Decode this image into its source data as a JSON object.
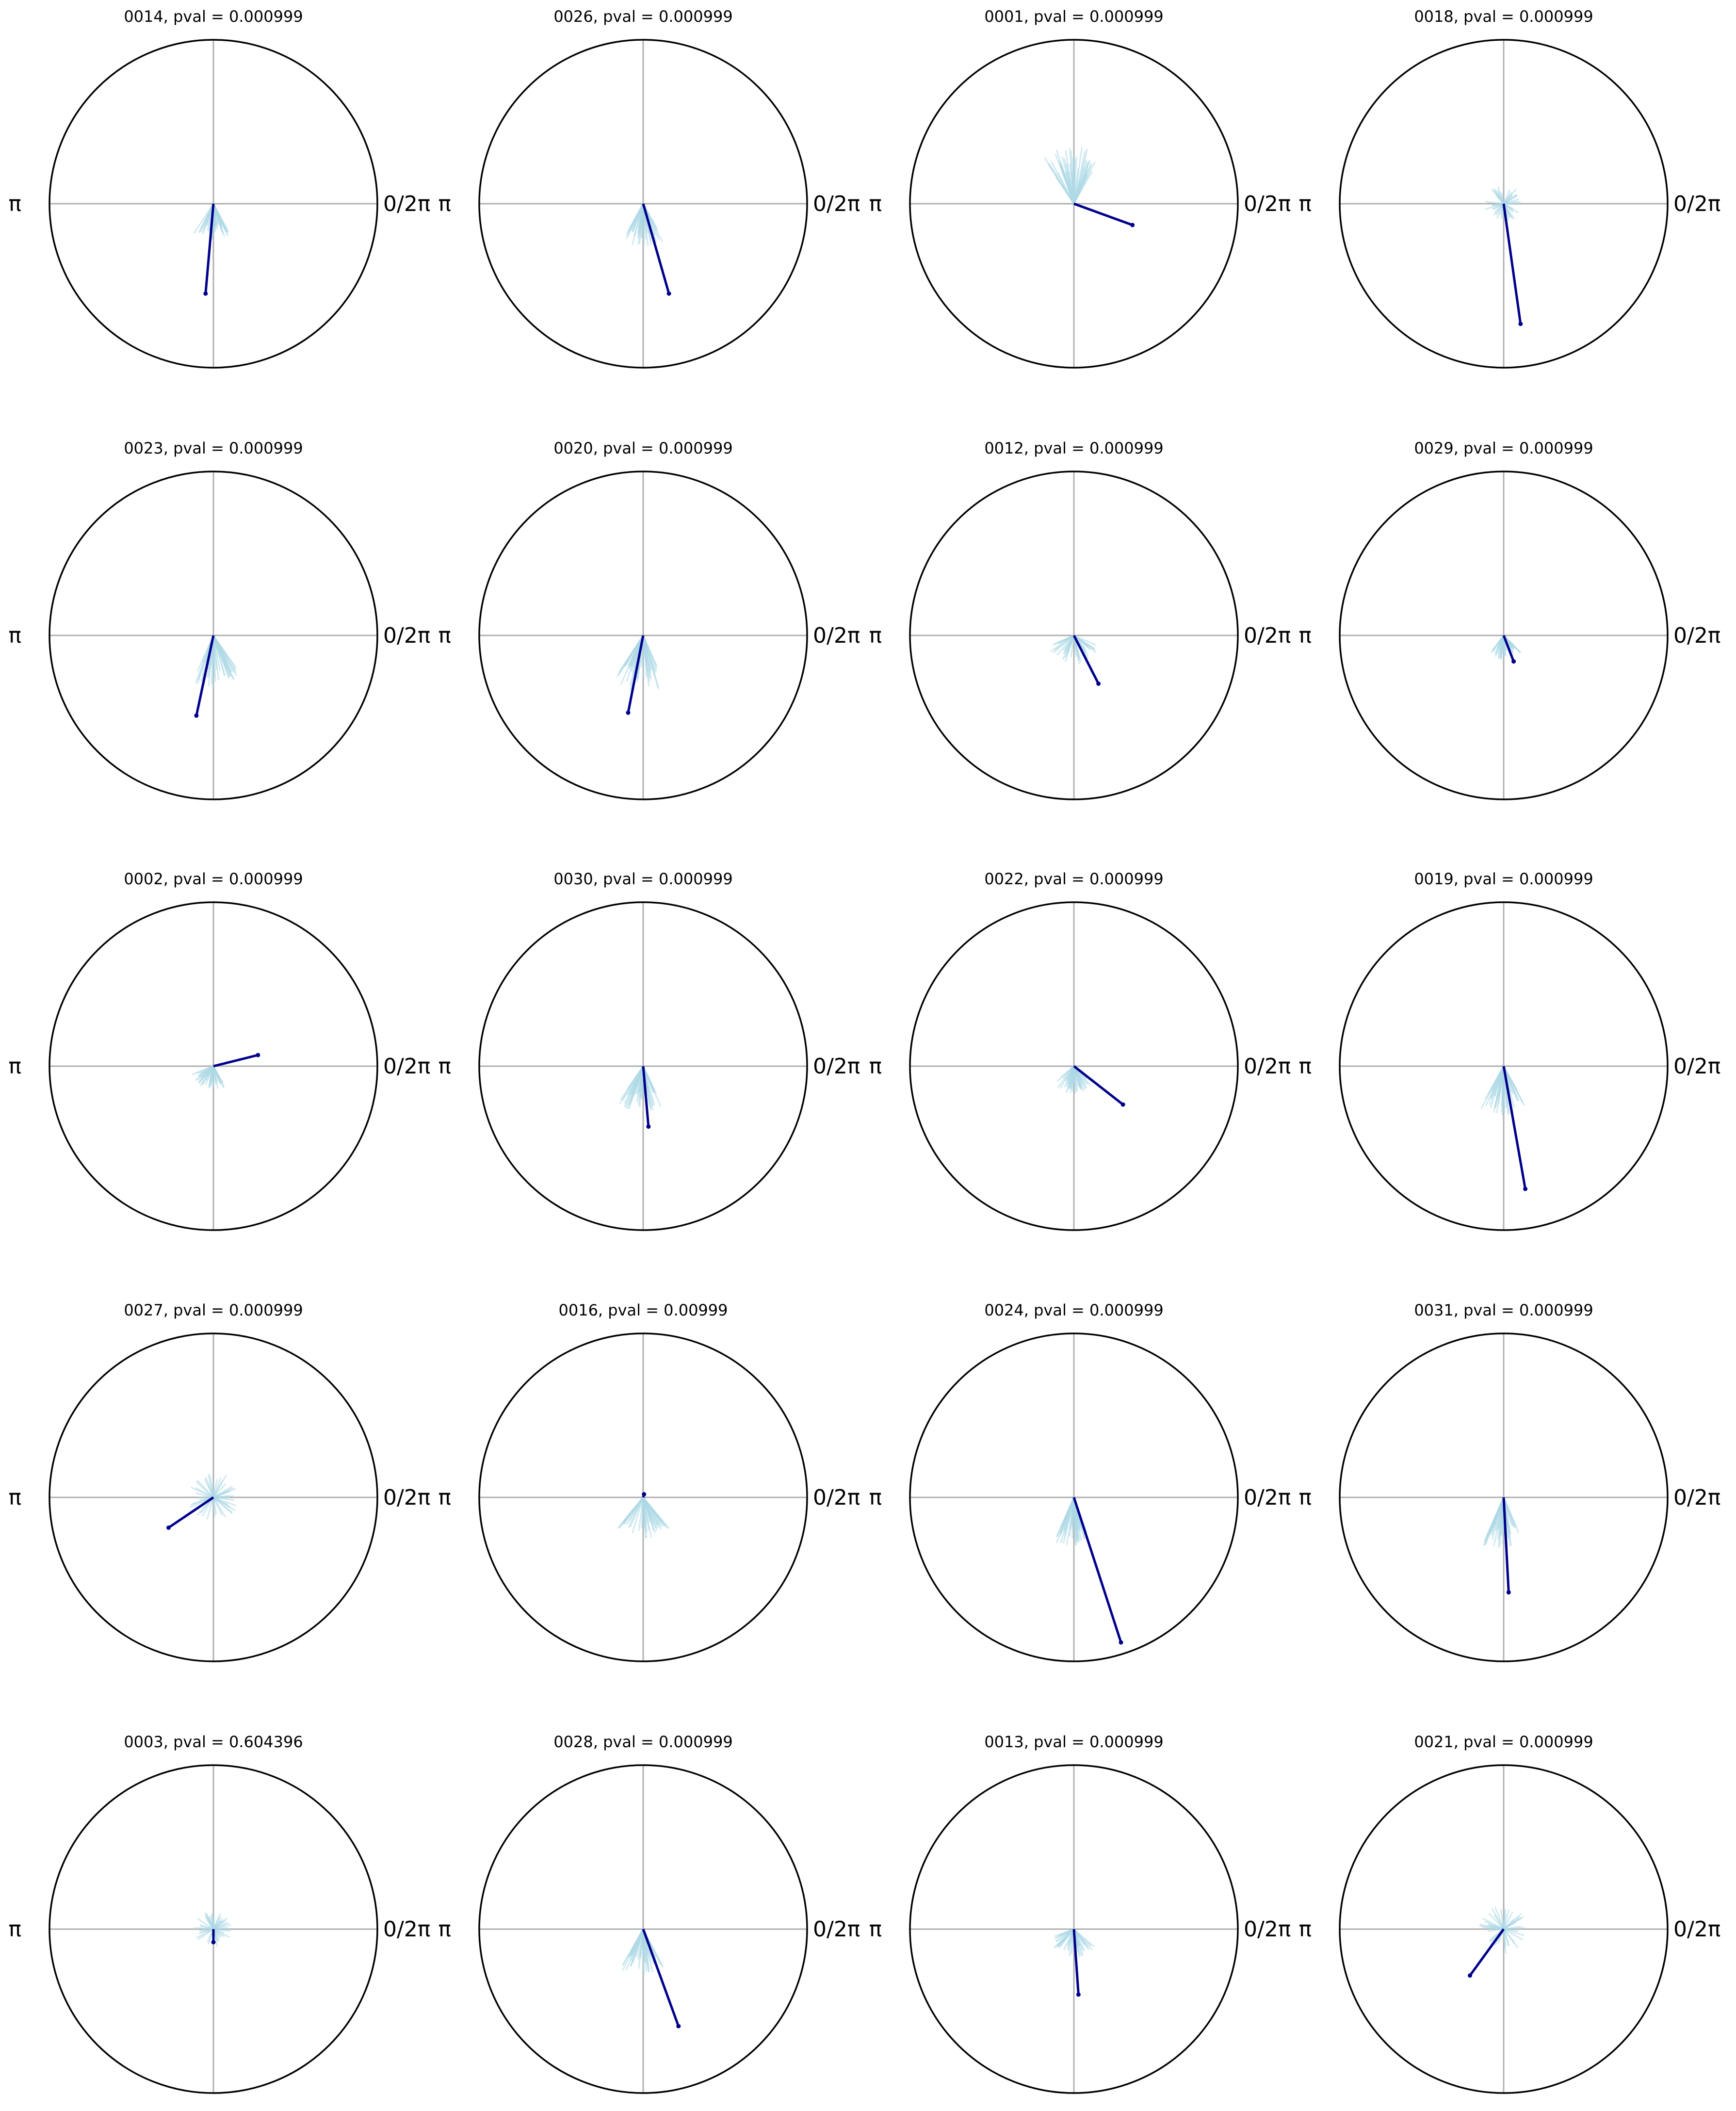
{
  "chart_data": {
    "type": "polar",
    "grid": true,
    "angle_labels": {
      "left": "π",
      "right": "0/2π"
    },
    "colors": {
      "mean_vector": "#00008b",
      "samples": "#add8e6",
      "circle": "#000000",
      "grid": "#b0b0b0"
    },
    "rmax": 1,
    "panels": [
      {
        "title": "0014, pval = 0.000999",
        "mean": {
          "angle_deg": 265,
          "length": 0.55
        },
        "spread_deg": [
          235,
          300
        ],
        "spread_r": 0.22
      },
      {
        "title": "0026, pval = 0.000999",
        "mean": {
          "angle_deg": 286,
          "length": 0.57
        },
        "spread_deg": [
          240,
          300
        ],
        "spread_r": 0.26
      },
      {
        "title": "0001, pval = 0.000999",
        "mean": {
          "angle_deg": 340,
          "length": 0.38
        },
        "spread_deg": [
          60,
          125
        ],
        "spread_r": 0.35
      },
      {
        "title": "0018, pval = 0.000999",
        "mean": {
          "angle_deg": 278,
          "length": 0.74
        },
        "spread_deg": [
          0,
          360
        ],
        "spread_r": 0.12
      },
      {
        "title": "0023, pval = 0.000999",
        "mean": {
          "angle_deg": 258,
          "length": 0.5
        },
        "spread_deg": [
          245,
          305
        ],
        "spread_r": 0.32
      },
      {
        "title": "0020, pval = 0.000999",
        "mean": {
          "angle_deg": 259,
          "length": 0.48
        },
        "spread_deg": [
          235,
          295
        ],
        "spread_r": 0.35
      },
      {
        "title": "0012, pval = 0.000999",
        "mean": {
          "angle_deg": 297,
          "length": 0.33
        },
        "spread_deg": [
          200,
          340
        ],
        "spread_r": 0.18
      },
      {
        "title": "0029, pval = 0.000999",
        "mean": {
          "angle_deg": 291,
          "length": 0.17
        },
        "spread_deg": [
          230,
          320
        ],
        "spread_r": 0.15
      },
      {
        "title": "0002, pval = 0.000999",
        "mean": {
          "angle_deg": 14,
          "length": 0.28
        },
        "spread_deg": [
          200,
          300
        ],
        "spread_r": 0.15
      },
      {
        "title": "0030, pval = 0.000999",
        "mean": {
          "angle_deg": 275,
          "length": 0.37
        },
        "spread_deg": [
          235,
          300
        ],
        "spread_r": 0.28
      },
      {
        "title": "0022, pval = 0.000999",
        "mean": {
          "angle_deg": 322,
          "length": 0.38
        },
        "spread_deg": [
          220,
          320
        ],
        "spread_r": 0.17
      },
      {
        "title": "0019, pval = 0.000999",
        "mean": {
          "angle_deg": 280,
          "length": 0.76
        },
        "spread_deg": [
          240,
          300
        ],
        "spread_r": 0.3
      },
      {
        "title": "0027, pval = 0.000999",
        "mean": {
          "angle_deg": 214,
          "length": 0.33
        },
        "spread_deg": [
          0,
          360
        ],
        "spread_r": 0.16
      },
      {
        "title": "0016, pval = 0.00999",
        "mean": {
          "angle_deg": 75,
          "length": 0.02
        },
        "spread_deg": [
          230,
          310
        ],
        "spread_r": 0.25
      },
      {
        "title": "0024, pval = 0.000999",
        "mean": {
          "angle_deg": 288,
          "length": 0.93
        },
        "spread_deg": [
          245,
          290
        ],
        "spread_r": 0.3
      },
      {
        "title": "0031, pval = 0.000999",
        "mean": {
          "angle_deg": 273,
          "length": 0.58
        },
        "spread_deg": [
          245,
          295
        ],
        "spread_r": 0.32
      },
      {
        "title": "0003, pval = 0.604396",
        "mean": {
          "angle_deg": 270,
          "length": 0.08
        },
        "spread_deg": [
          0,
          360
        ],
        "spread_r": 0.12
      },
      {
        "title": "0028, pval = 0.000999",
        "mean": {
          "angle_deg": 290,
          "length": 0.63
        },
        "spread_deg": [
          240,
          300
        ],
        "spread_r": 0.28
      },
      {
        "title": "0013, pval = 0.000999",
        "mean": {
          "angle_deg": 274,
          "length": 0.4
        },
        "spread_deg": [
          200,
          320
        ],
        "spread_r": 0.18
      },
      {
        "title": "0021, pval = 0.000999",
        "mean": {
          "angle_deg": 234,
          "length": 0.35
        },
        "spread_deg": [
          0,
          360
        ],
        "spread_r": 0.15
      }
    ]
  }
}
